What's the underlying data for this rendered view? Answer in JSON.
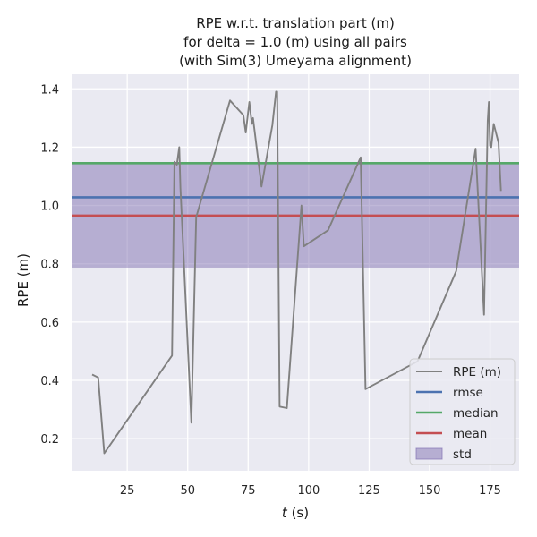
{
  "chart_data": {
    "type": "line",
    "title": [
      "RPE w.r.t. translation part (m)",
      "for delta = 1.0 (m) using all pairs",
      "(with Sim(3) Umeyama alignment)"
    ],
    "xlabel_italic": "t",
    "xlabel_rest": " (s)",
    "ylabel": "RPE (m)",
    "xlim": [
      2,
      187
    ],
    "ylim": [
      0.09,
      1.45
    ],
    "xticks": [
      25,
      50,
      75,
      100,
      125,
      150,
      175
    ],
    "yticks": [
      0.2,
      0.4,
      0.6,
      0.8,
      1.0,
      1.2,
      1.4
    ],
    "ytick_labels": [
      "0.2",
      "0.4",
      "0.6",
      "0.8",
      "1.0",
      "1.2",
      "1.4"
    ],
    "grid": true,
    "legend_placement": "lower-right",
    "series": [
      {
        "name": "RPE (m)",
        "color": "#808080",
        "x": [
          10.5,
          13.0,
          15.5,
          43.5,
          44.5,
          45.5,
          46.5,
          47.0,
          51.5,
          53.5,
          67.5,
          73.0,
          74.0,
          75.5,
          76.5,
          77.0,
          80.5,
          85.0,
          86.5,
          87.0,
          88.0,
          91.0,
          97.0,
          98.0,
          108.0,
          121.5,
          123.5,
          145.0,
          161.0,
          169.0,
          172.5,
          174.0,
          174.5,
          175.0,
          175.5,
          176.5,
          178.5,
          179.5
        ],
        "y": [
          0.42,
          0.41,
          0.15,
          0.485,
          1.15,
          1.14,
          1.2,
          1.06,
          0.255,
          0.96,
          1.36,
          1.31,
          1.25,
          1.355,
          1.28,
          1.3,
          1.065,
          1.275,
          1.39,
          1.39,
          0.31,
          0.305,
          1.0,
          0.86,
          0.915,
          1.165,
          0.37,
          0.465,
          0.775,
          1.195,
          0.625,
          1.29,
          1.355,
          1.205,
          1.2,
          1.28,
          1.215,
          1.05
        ]
      }
    ],
    "stats": {
      "rmse": {
        "name": "rmse",
        "value": 1.028,
        "color": "#4c72b0"
      },
      "median": {
        "name": "median",
        "value": 1.145,
        "color": "#55a868"
      },
      "mean": {
        "name": "mean",
        "value": 0.965,
        "color": "#c44e52"
      },
      "std": {
        "name": "std",
        "lower": 0.787,
        "upper": 1.143,
        "color": "#8172b2"
      }
    },
    "legend": [
      "RPE (m)",
      "rmse",
      "median",
      "mean",
      "std"
    ],
    "colors": {
      "background": "#eaeaf2",
      "grid": "#ffffff"
    }
  }
}
